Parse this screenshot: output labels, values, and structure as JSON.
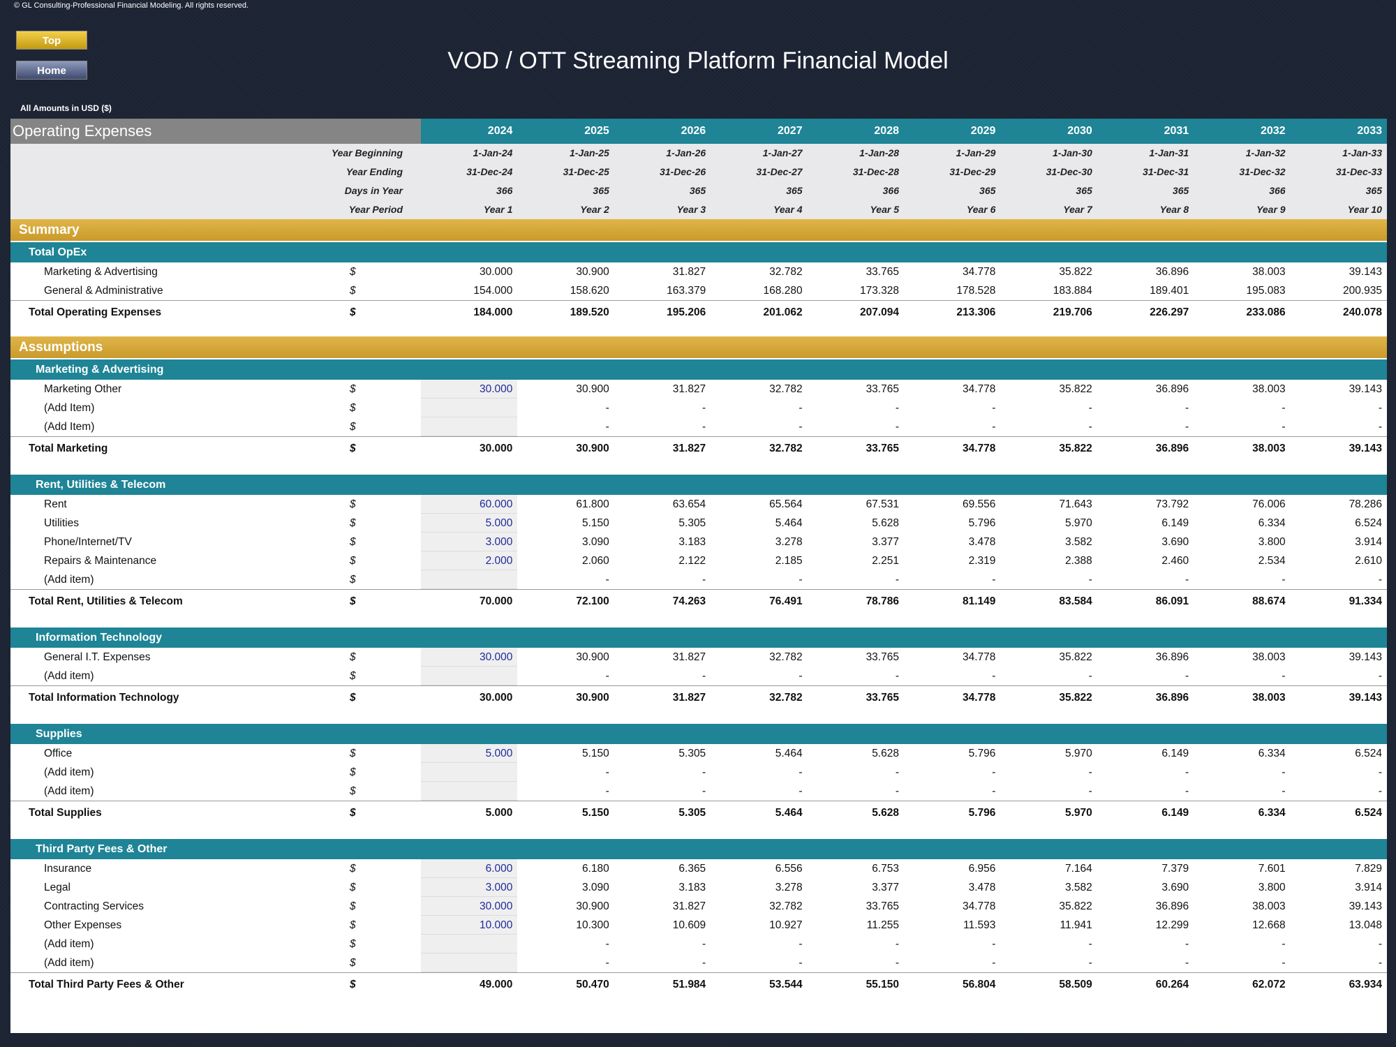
{
  "copyright": "© GL Consulting-Professional Financial Modeling. All rights reserved.",
  "buttons": [
    "Top",
    "Home"
  ],
  "title": "VOD / OTT Streaming Platform Financial Model",
  "amounts_note": "All Amounts in  USD ($)",
  "sheet": {
    "title": "Operating Expenses",
    "years": [
      "2024",
      "2025",
      "2026",
      "2027",
      "2028",
      "2029",
      "2030",
      "2031",
      "2032",
      "2033"
    ],
    "header_rows": [
      {
        "label": "Year Beginning",
        "values": [
          "1-Jan-24",
          "1-Jan-25",
          "1-Jan-26",
          "1-Jan-27",
          "1-Jan-28",
          "1-Jan-29",
          "1-Jan-30",
          "1-Jan-31",
          "1-Jan-32",
          "1-Jan-33"
        ]
      },
      {
        "label": "Year Ending",
        "values": [
          "31-Dec-24",
          "31-Dec-25",
          "31-Dec-26",
          "31-Dec-27",
          "31-Dec-28",
          "31-Dec-29",
          "31-Dec-30",
          "31-Dec-31",
          "31-Dec-32",
          "31-Dec-33"
        ]
      },
      {
        "label": "Days in Year",
        "values": [
          366,
          365,
          365,
          365,
          366,
          365,
          365,
          365,
          366,
          365
        ]
      },
      {
        "label": "Year Period",
        "values": [
          "Year 1",
          "Year 2",
          "Year 3",
          "Year 4",
          "Year 5",
          "Year 6",
          "Year 7",
          "Year 8",
          "Year 9",
          "Year 10"
        ]
      }
    ],
    "sections": [
      {
        "title": "Summary",
        "groups": [
          {
            "title": "Total OpEx",
            "rows": [
              {
                "label": "Marketing & Advertising",
                "unit": "$",
                "values": [
                  "30.000",
                  "30.900",
                  "31.827",
                  "32.782",
                  "33.765",
                  "34.778",
                  "35.822",
                  "36.896",
                  "38.003",
                  "39.143"
                ]
              },
              {
                "label": "General & Administrative",
                "unit": "$",
                "values": [
                  "154.000",
                  "158.620",
                  "163.379",
                  "168.280",
                  "173.328",
                  "178.528",
                  "183.884",
                  "189.401",
                  "195.083",
                  "200.935"
                ]
              }
            ],
            "total": {
              "label": "Total Operating Expenses",
              "unit": "$",
              "values": [
                "184.000",
                "189.520",
                "195.206",
                "201.062",
                "207.094",
                "213.306",
                "219.706",
                "226.297",
                "233.086",
                "240.078"
              ]
            }
          }
        ]
      },
      {
        "title": "Assumptions",
        "groups": [
          {
            "title": "Marketing & Advertising",
            "rows": [
              {
                "label": "Marketing Other",
                "unit": "$",
                "values": [
                  "30.000",
                  "30.900",
                  "31.827",
                  "32.782",
                  "33.765",
                  "34.778",
                  "35.822",
                  "36.896",
                  "38.003",
                  "39.143"
                ]
              },
              {
                "label": "(Add Item)",
                "unit": "$",
                "values": [
                  null,
                  "-",
                  "-",
                  "-",
                  "-",
                  "-",
                  "-",
                  "-",
                  "-",
                  "-"
                ]
              },
              {
                "label": "(Add Item)",
                "unit": "$",
                "values": [
                  null,
                  "-",
                  "-",
                  "-",
                  "-",
                  "-",
                  "-",
                  "-",
                  "-",
                  "-"
                ]
              }
            ],
            "total": {
              "label": "Total Marketing",
              "unit": "$",
              "values": [
                "30.000",
                "30.900",
                "31.827",
                "32.782",
                "33.765",
                "34.778",
                "35.822",
                "36.896",
                "38.003",
                "39.143"
              ]
            }
          },
          {
            "title": "Rent, Utilities & Telecom",
            "rows": [
              {
                "label": "Rent",
                "unit": "$",
                "values": [
                  "60.000",
                  "61.800",
                  "63.654",
                  "65.564",
                  "67.531",
                  "69.556",
                  "71.643",
                  "73.792",
                  "76.006",
                  "78.286"
                ]
              },
              {
                "label": "Utilities",
                "unit": "$",
                "values": [
                  "5.000",
                  "5.150",
                  "5.305",
                  "5.464",
                  "5.628",
                  "5.796",
                  "5.970",
                  "6.149",
                  "6.334",
                  "6.524"
                ]
              },
              {
                "label": "Phone/Internet/TV",
                "unit": "$",
                "values": [
                  "3.000",
                  "3.090",
                  "3.183",
                  "3.278",
                  "3.377",
                  "3.478",
                  "3.582",
                  "3.690",
                  "3.800",
                  "3.914"
                ]
              },
              {
                "label": "Repairs & Maintenance",
                "unit": "$",
                "values": [
                  "2.000",
                  "2.060",
                  "2.122",
                  "2.185",
                  "2.251",
                  "2.319",
                  "2.388",
                  "2.460",
                  "2.534",
                  "2.610"
                ]
              },
              {
                "label": "(Add item)",
                "unit": "$",
                "values": [
                  null,
                  "-",
                  "-",
                  "-",
                  "-",
                  "-",
                  "-",
                  "-",
                  "-",
                  "-"
                ]
              }
            ],
            "total": {
              "label": "Total Rent, Utilities & Telecom",
              "unit": "$",
              "values": [
                "70.000",
                "72.100",
                "74.263",
                "76.491",
                "78.786",
                "81.149",
                "83.584",
                "86.091",
                "88.674",
                "91.334"
              ]
            }
          },
          {
            "title": "Information Technology",
            "rows": [
              {
                "label": "General I.T. Expenses",
                "unit": "$",
                "values": [
                  "30.000",
                  "30.900",
                  "31.827",
                  "32.782",
                  "33.765",
                  "34.778",
                  "35.822",
                  "36.896",
                  "38.003",
                  "39.143"
                ]
              },
              {
                "label": "(Add item)",
                "unit": "$",
                "values": [
                  null,
                  "-",
                  "-",
                  "-",
                  "-",
                  "-",
                  "-",
                  "-",
                  "-",
                  "-"
                ]
              }
            ],
            "total": {
              "label": "Total Information Technology",
              "unit": "$",
              "values": [
                "30.000",
                "30.900",
                "31.827",
                "32.782",
                "33.765",
                "34.778",
                "35.822",
                "36.896",
                "38.003",
                "39.143"
              ]
            }
          },
          {
            "title": "Supplies",
            "rows": [
              {
                "label": "Office",
                "unit": "$",
                "values": [
                  "5.000",
                  "5.150",
                  "5.305",
                  "5.464",
                  "5.628",
                  "5.796",
                  "5.970",
                  "6.149",
                  "6.334",
                  "6.524"
                ]
              },
              {
                "label": "(Add item)",
                "unit": "$",
                "values": [
                  null,
                  "-",
                  "-",
                  "-",
                  "-",
                  "-",
                  "-",
                  "-",
                  "-",
                  "-"
                ]
              },
              {
                "label": "(Add item)",
                "unit": "$",
                "values": [
                  null,
                  "-",
                  "-",
                  "-",
                  "-",
                  "-",
                  "-",
                  "-",
                  "-",
                  "-"
                ]
              }
            ],
            "total": {
              "label": "Total Supplies",
              "unit": "$",
              "values": [
                "5.000",
                "5.150",
                "5.305",
                "5.464",
                "5.628",
                "5.796",
                "5.970",
                "6.149",
                "6.334",
                "6.524"
              ]
            }
          },
          {
            "title": "Third Party Fees & Other",
            "rows": [
              {
                "label": "Insurance",
                "unit": "$",
                "values": [
                  "6.000",
                  "6.180",
                  "6.365",
                  "6.556",
                  "6.753",
                  "6.956",
                  "7.164",
                  "7.379",
                  "7.601",
                  "7.829"
                ]
              },
              {
                "label": "Legal",
                "unit": "$",
                "values": [
                  "3.000",
                  "3.090",
                  "3.183",
                  "3.278",
                  "3.377",
                  "3.478",
                  "3.582",
                  "3.690",
                  "3.800",
                  "3.914"
                ]
              },
              {
                "label": "Contracting Services",
                "unit": "$",
                "values": [
                  "30.000",
                  "30.900",
                  "31.827",
                  "32.782",
                  "33.765",
                  "34.778",
                  "35.822",
                  "36.896",
                  "38.003",
                  "39.143"
                ]
              },
              {
                "label": "Other Expenses",
                "unit": "$",
                "values": [
                  "10.000",
                  "10.300",
                  "10.609",
                  "10.927",
                  "11.255",
                  "11.593",
                  "11.941",
                  "12.299",
                  "12.668",
                  "13.048"
                ]
              },
              {
                "label": "(Add item)",
                "unit": "$",
                "values": [
                  null,
                  "-",
                  "-",
                  "-",
                  "-",
                  "-",
                  "-",
                  "-",
                  "-",
                  "-"
                ]
              },
              {
                "label": "(Add item)",
                "unit": "$",
                "values": [
                  null,
                  "-",
                  "-",
                  "-",
                  "-",
                  "-",
                  "-",
                  "-",
                  "-",
                  "-"
                ]
              }
            ],
            "total": {
              "label": "Total Third Party Fees & Other",
              "unit": "$",
              "values": [
                "49.000",
                "50.470",
                "51.984",
                "53.544",
                "55.150",
                "56.804",
                "58.509",
                "60.264",
                "62.072",
                "63.934"
              ]
            }
          }
        ]
      }
    ]
  }
}
